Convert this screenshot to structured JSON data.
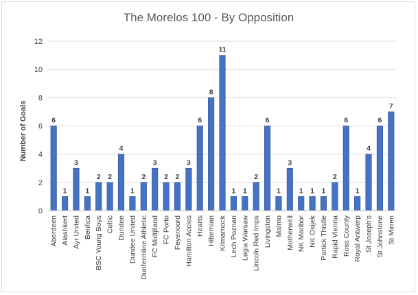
{
  "chart_data": {
    "type": "bar",
    "title": "The Morelos 100 - By Opposition",
    "xlabel": "",
    "ylabel": "Number of Goals",
    "ylim": [
      0,
      12
    ],
    "yticks": [
      0,
      2,
      4,
      6,
      8,
      10,
      12
    ],
    "grid": true,
    "legend": "none",
    "bar_color": "#4472c4",
    "categories": [
      "Aberdeen",
      "Alashkert",
      "Ayr United",
      "Benfica",
      "BSC Young Boys",
      "Celtic",
      "Dundee",
      "Dundee United",
      "Dunfermline Athletic",
      "FC Midtjlland",
      "FC Porto",
      "Feyenoord",
      "Hamilton Accies",
      "Hearts",
      "Hibernian",
      "Kilmarnock",
      "Lech Poznan",
      "Legia Warsaw",
      "Lincoln Red Imps",
      "Livingston",
      "Malmo",
      "Motherwell",
      "NK Maribor",
      "NK Osijek",
      "Partick Thistle",
      "Rapid Vienna",
      "Ross County",
      "Royal Antwerp",
      "St Joseph's",
      "St Johnstone",
      "St Mirren"
    ],
    "values": [
      6,
      1,
      3,
      1,
      2,
      2,
      4,
      1,
      2,
      3,
      2,
      2,
      3,
      6,
      8,
      11,
      1,
      1,
      2,
      6,
      1,
      3,
      1,
      1,
      1,
      2,
      6,
      1,
      4,
      6,
      7
    ]
  }
}
